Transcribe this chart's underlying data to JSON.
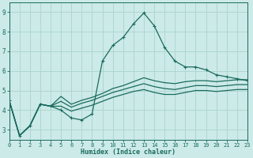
{
  "title": "",
  "xlabel": "Humidex (Indice chaleur)",
  "background_color": "#cceae7",
  "grid_color": "#aad4d0",
  "line_color": "#1a6b5e",
  "xlim": [
    0,
    23
  ],
  "ylim": [
    2.5,
    9.5
  ],
  "yticks": [
    3,
    4,
    5,
    6,
    7,
    8,
    9
  ],
  "xticks": [
    0,
    1,
    2,
    3,
    4,
    5,
    6,
    7,
    8,
    9,
    10,
    11,
    12,
    13,
    14,
    15,
    16,
    17,
    18,
    19,
    20,
    21,
    22,
    23
  ],
  "series": [
    [
      4.5,
      2.7,
      3.2,
      4.3,
      4.2,
      4.0,
      3.6,
      3.5,
      3.8,
      6.5,
      7.3,
      7.7,
      8.4,
      8.95,
      8.3,
      7.2,
      6.5,
      6.2,
      6.2,
      6.05,
      5.8,
      5.7,
      5.6,
      5.5
    ],
    [
      4.5,
      2.7,
      3.2,
      4.3,
      4.2,
      4.7,
      4.3,
      4.5,
      4.65,
      4.85,
      5.1,
      5.25,
      5.45,
      5.65,
      5.5,
      5.4,
      5.35,
      5.45,
      5.5,
      5.5,
      5.45,
      5.5,
      5.55,
      5.55
    ],
    [
      4.5,
      2.7,
      3.2,
      4.3,
      4.2,
      4.45,
      4.15,
      4.35,
      4.5,
      4.7,
      4.9,
      5.05,
      5.2,
      5.35,
      5.2,
      5.1,
      5.05,
      5.15,
      5.25,
      5.25,
      5.2,
      5.25,
      5.3,
      5.3
    ],
    [
      4.5,
      2.7,
      3.2,
      4.3,
      4.2,
      4.2,
      3.95,
      4.1,
      4.25,
      4.45,
      4.65,
      4.8,
      4.95,
      5.05,
      4.9,
      4.8,
      4.8,
      4.9,
      5.0,
      5.0,
      4.95,
      5.0,
      5.05,
      5.05
    ]
  ],
  "marker_series": 0,
  "xlabel_fontsize": 6,
  "tick_fontsize": 5,
  "linewidth": 0.9
}
